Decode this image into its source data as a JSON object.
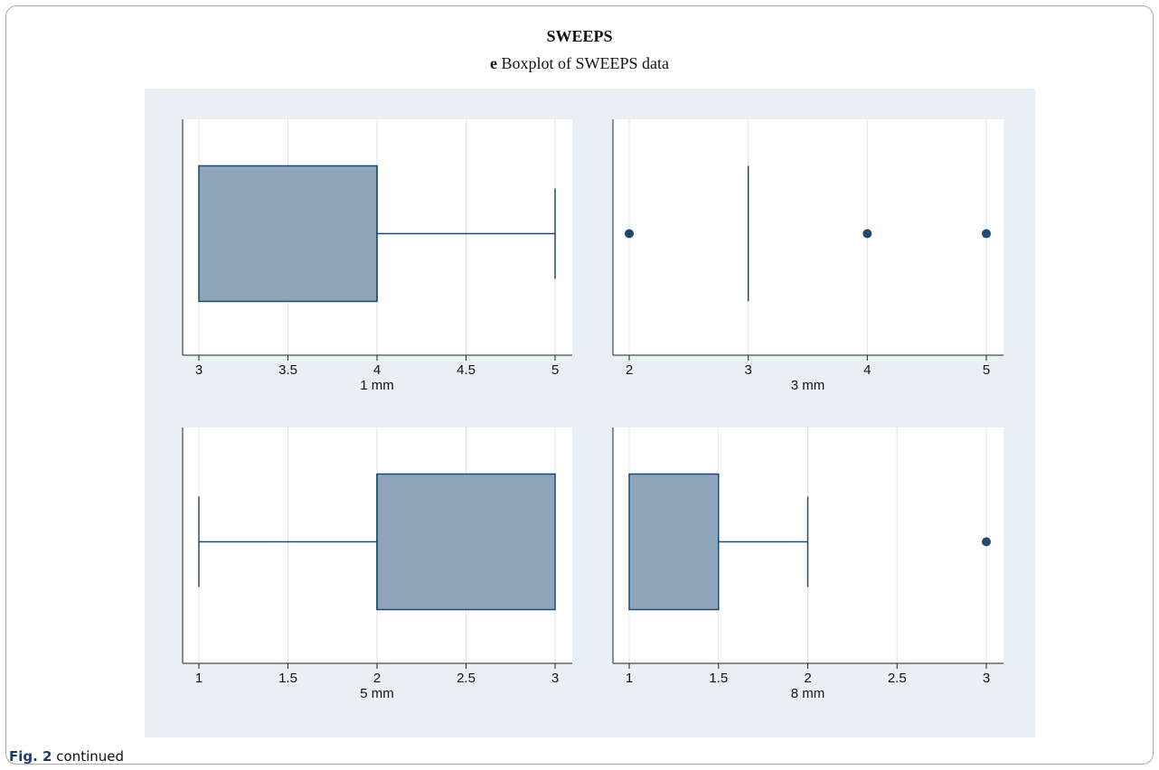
{
  "title": "SWEEPS",
  "subtitle": {
    "letter": "e",
    "text": "Boxplot of SWEEPS data"
  },
  "caption": {
    "figref": "Fig. 2",
    "text": "continued"
  },
  "colors": {
    "box_fill": "#8fa5b9",
    "box_stroke": "#1e4a73",
    "grid": "#e6e6e6",
    "panel_bg": "#ffffff",
    "outer_bg": "#e8f0f3"
  },
  "chart_data": [
    {
      "type": "boxplot",
      "xlabel": "1 mm",
      "xlim": [
        3,
        5
      ],
      "ticks": [
        "3",
        "3.5",
        "4",
        "4.5",
        "5"
      ],
      "min": 3,
      "q1": 3,
      "median": 4,
      "q3": 4,
      "max": 5,
      "outliers": []
    },
    {
      "type": "boxplot",
      "xlabel": "3 mm",
      "xlim": [
        2,
        5
      ],
      "ticks": [
        "2",
        "3",
        "4",
        "5"
      ],
      "min": 3,
      "q1": 3,
      "median": 3,
      "q3": 3,
      "max": 3,
      "outliers": [
        2,
        4,
        5
      ]
    },
    {
      "type": "boxplot",
      "xlabel": "5 mm",
      "xlim": [
        1,
        3
      ],
      "ticks": [
        "1",
        "1.5",
        "2",
        "2.5",
        "3"
      ],
      "min": 1,
      "q1": 2,
      "median": 2,
      "q3": 3,
      "max": 3,
      "outliers": []
    },
    {
      "type": "boxplot",
      "xlabel": "8 mm",
      "xlim": [
        1,
        3
      ],
      "ticks": [
        "1",
        "1.5",
        "2",
        "2.5",
        "3"
      ],
      "min": 1,
      "q1": 1,
      "median": 1.5,
      "q3": 1.5,
      "max": 2,
      "outliers": [
        3
      ]
    }
  ]
}
